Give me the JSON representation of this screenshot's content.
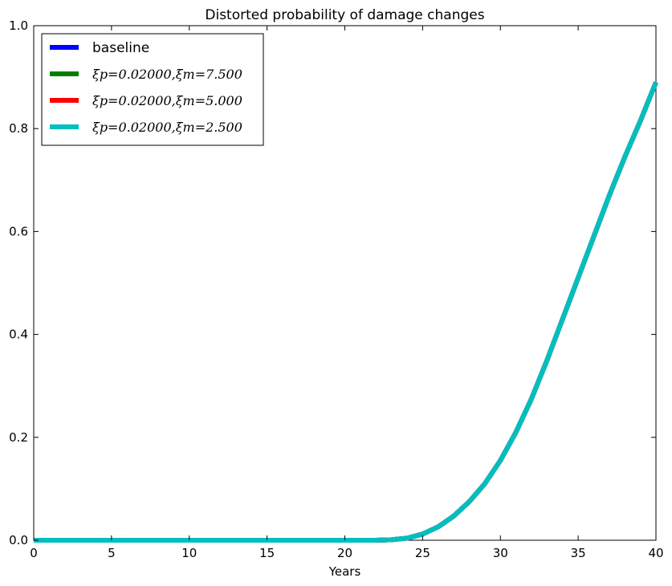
{
  "chart_data": {
    "type": "line",
    "title": "Distorted probability of damage changes",
    "xlabel": "Years",
    "ylabel": "",
    "xlim": [
      0,
      40
    ],
    "ylim": [
      0,
      1.0
    ],
    "xticks": [
      0,
      5,
      10,
      15,
      20,
      25,
      30,
      35,
      40
    ],
    "yticks": [
      0.0,
      0.2,
      0.4,
      0.6,
      0.8,
      1.0
    ],
    "xtick_labels": [
      "0",
      "5",
      "10",
      "15",
      "20",
      "25",
      "30",
      "35",
      "40"
    ],
    "ytick_labels": [
      "0.0",
      "0.2",
      "0.4",
      "0.6",
      "0.8",
      "1.0"
    ],
    "grid": false,
    "legend_position": "top-left",
    "x": [
      0,
      5,
      10,
      15,
      20,
      22,
      23,
      24,
      25,
      26,
      27,
      28,
      29,
      30,
      31,
      32,
      33,
      34,
      35,
      36,
      37,
      38,
      39,
      40
    ],
    "series": [
      {
        "name": "baseline",
        "color": "#0000ff",
        "values": [
          0,
          0,
          0,
          0,
          0,
          0,
          0.001,
          0.004,
          0.012,
          0.026,
          0.047,
          0.075,
          0.11,
          0.155,
          0.21,
          0.275,
          0.35,
          0.43,
          0.51,
          0.59,
          0.67,
          0.745,
          0.815,
          0.89
        ]
      },
      {
        "name": "ξp=0.02000,ξm=7.500",
        "color": "#008000",
        "values": [
          0,
          0,
          0,
          0,
          0,
          0,
          0.001,
          0.004,
          0.012,
          0.026,
          0.047,
          0.075,
          0.11,
          0.155,
          0.21,
          0.275,
          0.35,
          0.43,
          0.51,
          0.59,
          0.67,
          0.745,
          0.815,
          0.89
        ]
      },
      {
        "name": "ξp=0.02000,ξm=5.000",
        "color": "#ff0000",
        "values": [
          0,
          0,
          0,
          0,
          0,
          0,
          0.001,
          0.004,
          0.012,
          0.026,
          0.047,
          0.075,
          0.11,
          0.155,
          0.21,
          0.275,
          0.35,
          0.43,
          0.51,
          0.59,
          0.67,
          0.745,
          0.815,
          0.89
        ]
      },
      {
        "name": "ξp=0.02000,ξm=2.500",
        "color": "#00bfbf",
        "values": [
          0,
          0,
          0,
          0,
          0,
          0,
          0.001,
          0.004,
          0.012,
          0.026,
          0.047,
          0.075,
          0.11,
          0.155,
          0.21,
          0.275,
          0.35,
          0.43,
          0.51,
          0.59,
          0.67,
          0.745,
          0.815,
          0.89
        ]
      }
    ]
  }
}
